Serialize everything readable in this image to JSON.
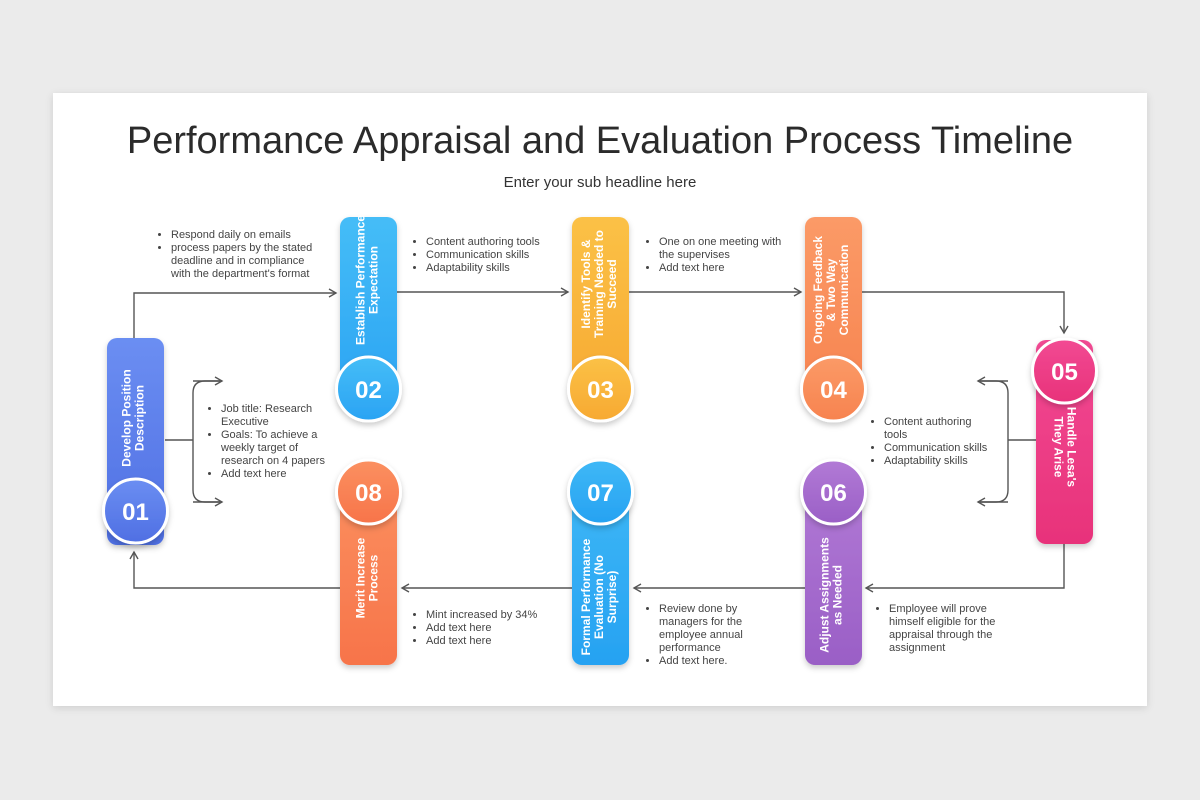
{
  "title": "Performance Appraisal and Evaluation Process Timeline",
  "subtitle": "Enter your sub headline here",
  "steps": [
    {
      "number": "01",
      "label": [
        "Develop Position",
        "Description"
      ],
      "colors": [
        "#4f6fe3",
        "#6b8ef2"
      ]
    },
    {
      "number": "02",
      "label": [
        "Establish Performance",
        "Expectation"
      ],
      "colors": [
        "#2aa3f3",
        "#45bdf7"
      ]
    },
    {
      "number": "03",
      "label": [
        "Identify Tools &",
        "Training Needed to",
        "Succeed"
      ],
      "colors": [
        "#f7a932",
        "#fbc146"
      ]
    },
    {
      "number": "04",
      "label": [
        "Ongoing Feedback",
        "& Two Way",
        "Communication"
      ],
      "colors": [
        "#f7834f",
        "#fb9a67"
      ]
    },
    {
      "number": "05",
      "label": [
        "Handle Lesa's",
        "They Arise"
      ],
      "colors": [
        "#e8327a",
        "#f24a93"
      ]
    },
    {
      "number": "06",
      "label": [
        "Adjust Assignments",
        "as Needed"
      ],
      "colors": [
        "#9a5fc6",
        "#b27ad6"
      ]
    },
    {
      "number": "07",
      "label": [
        "Formal Performance",
        "Evaluation (No",
        "Surprise)"
      ],
      "colors": [
        "#26a2f2",
        "#3fb8f6"
      ]
    },
    {
      "number": "08",
      "label": [
        "Merit Increase",
        "Process"
      ],
      "colors": [
        "#f7744a",
        "#fb9060"
      ]
    }
  ],
  "notes": [
    [
      "Respond daily on emails",
      "process papers by the stated deadline and in compliance with the department's format"
    ],
    [
      "Content authoring tools",
      "Communication skills",
      "Adaptability skills"
    ],
    [
      "One on one meeting with the supervises",
      "Add text here"
    ],
    [
      "Job title: Research Executive",
      "Goals: To achieve a weekly target of research on 4 papers",
      "Add text here"
    ],
    [
      "Content authoring tools",
      "Communication skills",
      "Adaptability skills"
    ],
    [
      "Mint increased by 34%",
      "Add text here",
      "Add text here"
    ],
    [
      "Review done by managers for the employee annual performance",
      "Add text here."
    ],
    [
      "Employee will prove himself eligible for the appraisal through the assignment"
    ]
  ]
}
